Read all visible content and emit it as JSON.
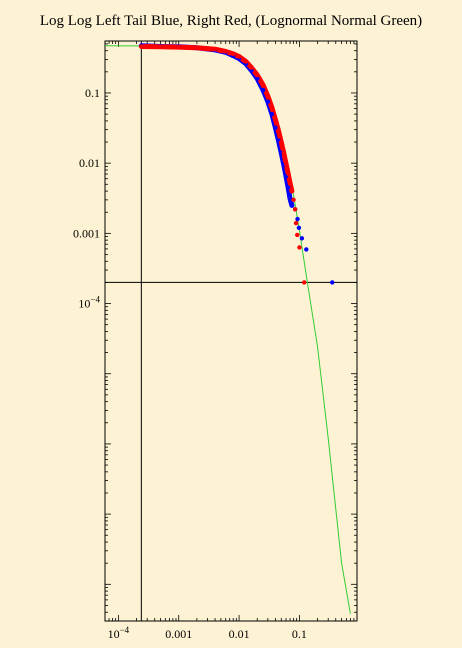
{
  "title": "Log Log Left Tail Blue, Right Red, (Lognormal Normal Green)",
  "chart_data": {
    "type": "scatter",
    "title": "Log Log Left Tail Blue, Right Red, (Lognormal Normal Green)",
    "x_scale": "log",
    "y_scale": "log",
    "xlim": [
      6e-05,
      0.9
    ],
    "ylim": [
      3e-09,
      0.55
    ],
    "grid": false,
    "x_ticks": [
      {
        "value": 0.0001,
        "base": "10",
        "exp": "−4"
      },
      {
        "value": 0.001,
        "label": "0.001"
      },
      {
        "value": 0.01,
        "label": "0.01"
      },
      {
        "value": 0.1,
        "label": "0.1"
      }
    ],
    "y_ticks": [
      {
        "value": 0.1,
        "label": "0.1"
      },
      {
        "value": 0.01,
        "label": "0.01"
      },
      {
        "value": 0.001,
        "label": "0.001"
      },
      {
        "value": 0.0001,
        "base": "10",
        "exp": "−4"
      }
    ],
    "reference_lines": {
      "vertical_x": 0.00024,
      "horizontal_y": 0.0002
    },
    "colors": {
      "left_tail": "#0000ff",
      "right_tail": "#ff0000",
      "fit": "#33cc33",
      "axis": "#000000",
      "background": "#fdf3d4"
    },
    "series": [
      {
        "color": "#0000ff",
        "points": [
          [
            0.00024,
            0.47
          ],
          [
            0.0005,
            0.46
          ],
          [
            0.001,
            0.455
          ],
          [
            0.002,
            0.44
          ],
          [
            0.004,
            0.41
          ],
          [
            0.006,
            0.38
          ],
          [
            0.008,
            0.34
          ],
          [
            0.01,
            0.31
          ],
          [
            0.013,
            0.26
          ],
          [
            0.016,
            0.21
          ],
          [
            0.02,
            0.16
          ],
          [
            0.025,
            0.11
          ],
          [
            0.03,
            0.075
          ],
          [
            0.035,
            0.05
          ],
          [
            0.04,
            0.032
          ],
          [
            0.045,
            0.021
          ],
          [
            0.05,
            0.014
          ],
          [
            0.055,
            0.0095
          ],
          [
            0.06,
            0.0065
          ],
          [
            0.065,
            0.0045
          ],
          [
            0.07,
            0.0031
          ],
          [
            0.075,
            0.0025
          ],
          [
            0.085,
            0.0022
          ],
          [
            0.093,
            0.0016
          ],
          [
            0.098,
            0.0012
          ],
          [
            0.11,
            0.00085
          ],
          [
            0.13,
            0.00059
          ],
          [
            0.35,
            0.0002
          ]
        ]
      },
      {
        "color": "#ff0000",
        "points": [
          [
            0.00024,
            0.46
          ],
          [
            0.0005,
            0.455
          ],
          [
            0.001,
            0.45
          ],
          [
            0.002,
            0.44
          ],
          [
            0.004,
            0.42
          ],
          [
            0.006,
            0.39
          ],
          [
            0.008,
            0.36
          ],
          [
            0.01,
            0.33
          ],
          [
            0.013,
            0.28
          ],
          [
            0.016,
            0.23
          ],
          [
            0.02,
            0.18
          ],
          [
            0.025,
            0.13
          ],
          [
            0.03,
            0.09
          ],
          [
            0.035,
            0.062
          ],
          [
            0.04,
            0.042
          ],
          [
            0.045,
            0.029
          ],
          [
            0.05,
            0.02
          ],
          [
            0.055,
            0.014
          ],
          [
            0.06,
            0.0098
          ],
          [
            0.065,
            0.0071
          ],
          [
            0.07,
            0.0052
          ],
          [
            0.075,
            0.004
          ],
          [
            0.08,
            0.003
          ],
          [
            0.085,
            0.0022
          ],
          [
            0.088,
            0.0014
          ],
          [
            0.092,
            0.00095
          ],
          [
            0.1,
            0.00063
          ],
          [
            0.12,
            0.0002
          ]
        ]
      },
      {
        "color": "#33cc33",
        "type": "line",
        "points": [
          [
            6e-05,
            0.47
          ],
          [
            0.00024,
            0.469
          ],
          [
            0.001,
            0.46
          ],
          [
            0.003,
            0.43
          ],
          [
            0.006,
            0.39
          ],
          [
            0.01,
            0.33
          ],
          [
            0.02,
            0.19
          ],
          [
            0.04,
            0.045
          ],
          [
            0.06,
            0.011
          ],
          [
            0.08,
            0.0035
          ],
          [
            0.1,
            0.0011
          ],
          [
            0.13,
            0.00025
          ],
          [
            0.2,
            2.4e-05
          ],
          [
            0.3,
            1.2e-06
          ],
          [
            0.5,
            2e-08
          ],
          [
            0.7,
            3.8e-09
          ]
        ]
      }
    ]
  }
}
